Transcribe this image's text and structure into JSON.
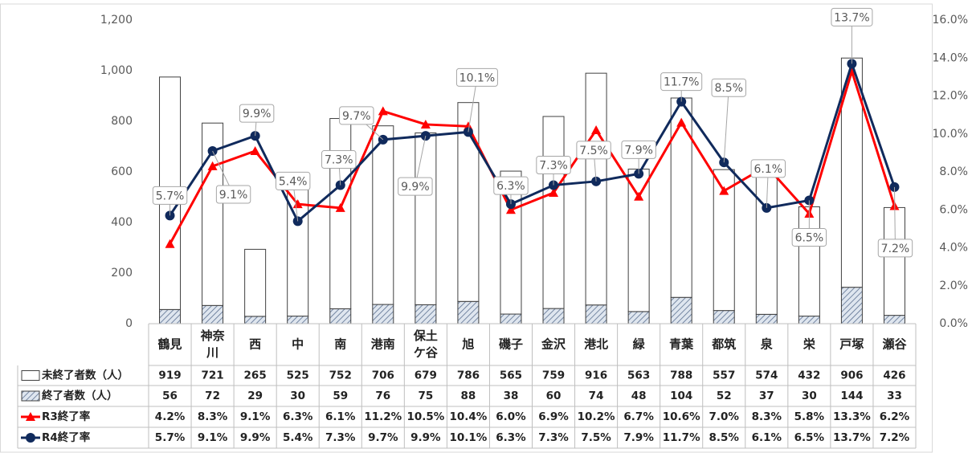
{
  "chart_data": {
    "type": "bar_line_table",
    "categories": [
      "鶴見",
      "神奈川",
      "西",
      "中",
      "南",
      "港南",
      "保土ケ谷",
      "旭",
      "磯子",
      "金沢",
      "港北",
      "緑",
      "青葉",
      "都筑",
      "泉",
      "栄",
      "戸塚",
      "瀬谷"
    ],
    "series": [
      {
        "name": "未終了者数（人）",
        "color": "#ffffff",
        "axis": "y",
        "values": [
          919,
          721,
          265,
          525,
          752,
          706,
          679,
          786,
          565,
          759,
          916,
          563,
          788,
          557,
          574,
          432,
          906,
          426
        ]
      },
      {
        "name": "終了者数（人）",
        "color": "#5a6f8f",
        "axis": "y",
        "values": [
          56,
          72,
          29,
          30,
          59,
          76,
          75,
          88,
          38,
          60,
          74,
          48,
          104,
          52,
          37,
          30,
          144,
          33
        ]
      },
      {
        "name": "R3終了率",
        "color": "#ff0000",
        "axis": "y2",
        "values": [
          4.2,
          8.3,
          9.1,
          6.3,
          6.1,
          11.2,
          10.5,
          10.4,
          6.0,
          6.9,
          10.2,
          6.7,
          10.6,
          7.0,
          8.3,
          5.8,
          13.3,
          6.2
        ],
        "value_labels": [
          "4.2%",
          "8.3%",
          "9.1%",
          "6.3%",
          "6.1%",
          "11.2%",
          "10.5%",
          "10.4%",
          "6.0%",
          "6.9%",
          "10.2%",
          "6.7%",
          "10.6%",
          "7.0%",
          "8.3%",
          "5.8%",
          "13.3%",
          "6.2%"
        ]
      },
      {
        "name": "R4終了率",
        "color": "#102a5c",
        "axis": "y2",
        "values": [
          5.7,
          9.1,
          9.9,
          5.4,
          7.3,
          9.7,
          9.9,
          10.1,
          6.3,
          7.3,
          7.5,
          7.9,
          11.7,
          8.5,
          6.1,
          6.5,
          13.7,
          7.2
        ],
        "value_labels": [
          "5.7%",
          "9.1%",
          "9.9%",
          "5.4%",
          "7.3%",
          "9.7%",
          "9.9%",
          "10.1%",
          "6.3%",
          "7.3%",
          "7.5%",
          "7.9%",
          "11.7%",
          "8.5%",
          "6.1%",
          "6.5%",
          "13.7%",
          "7.2%"
        ]
      }
    ],
    "ylim": [
      0,
      1200
    ],
    "yticks": [
      0,
      200,
      400,
      600,
      800,
      {
        "value": 1000,
        "label": "1,000"
      },
      {
        "value": 1200,
        "label": "1,200"
      }
    ],
    "y2lim": [
      0,
      16
    ],
    "y2ticks": [
      {
        "value": 0,
        "label": "0.0%"
      },
      {
        "value": 2,
        "label": "2.0%"
      },
      {
        "value": 4,
        "label": "4.0%"
      },
      {
        "value": 6,
        "label": "6.0%"
      },
      {
        "value": 8,
        "label": "8.0%"
      },
      {
        "value": 10,
        "label": "10.0%"
      },
      {
        "value": 12,
        "label": "12.0%"
      },
      {
        "value": 14,
        "label": "14.0%"
      },
      {
        "value": 16,
        "label": "16.0%"
      }
    ]
  }
}
